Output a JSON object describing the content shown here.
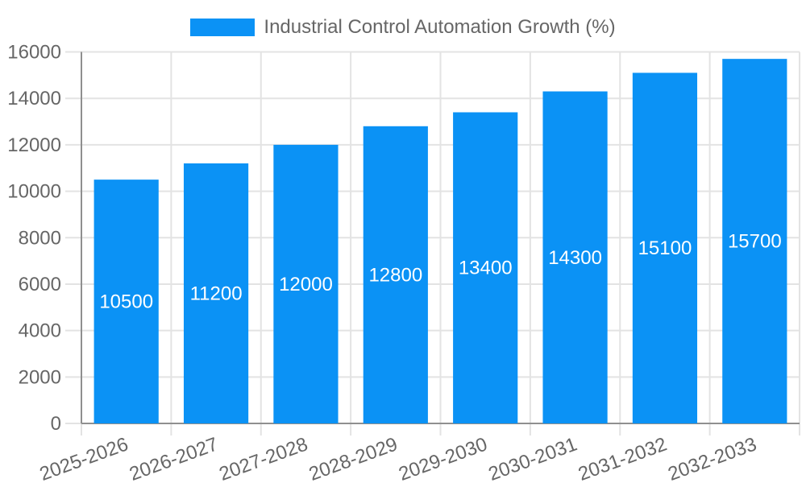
{
  "chart_data": {
    "type": "bar",
    "title": "Industrial Control Automation Growth (%)",
    "categories": [
      "2025-2026",
      "2026-2027",
      "2027-2028",
      "2028-2029",
      "2029-2030",
      "2030-2031",
      "2031-2032",
      "2032-2033"
    ],
    "series": [
      {
        "name": "Industrial Control Automation Growth (%)",
        "values": [
          10500,
          11200,
          12000,
          12800,
          13400,
          14300,
          15100,
          15700
        ]
      }
    ],
    "bar_value_labels": [
      "10500",
      "11200",
      "12000",
      "12800",
      "13400",
      "14300",
      "15100",
      "15700"
    ],
    "xlabel": "",
    "ylabel": "",
    "ylim": [
      0,
      16000
    ],
    "yticks": [
      0,
      2000,
      4000,
      6000,
      8000,
      10000,
      12000,
      14000,
      16000
    ],
    "grid": true,
    "legend_position": "top",
    "x_label_rotation_deg": -20,
    "colors": {
      "bar": "#0b92f5",
      "tick_text": "#666666",
      "grid": "#e3e3e3",
      "axis": "#8f8f8f",
      "value_label": "#ffffff",
      "background": "#ffffff"
    }
  }
}
